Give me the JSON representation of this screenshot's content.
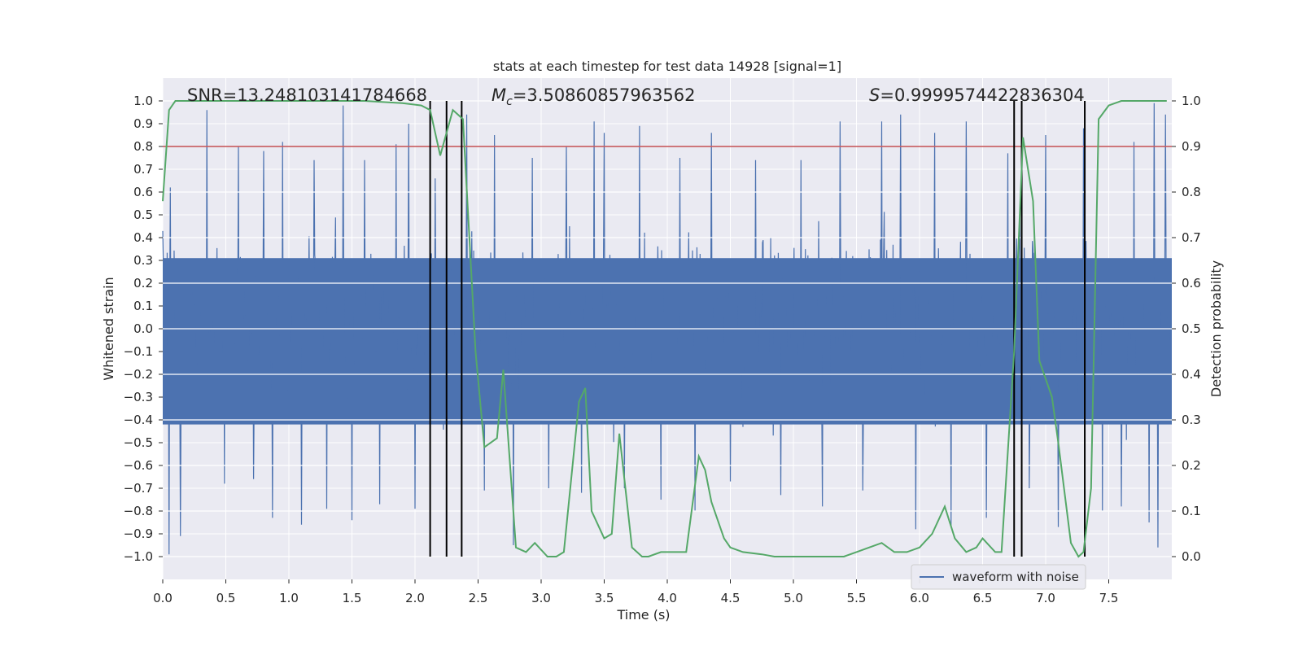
{
  "chart_data": {
    "type": "line",
    "title": "stats at each timestep for test data 14928 [signal=1]",
    "xlabel": "Time (s)",
    "ylabel": "Whitened strain",
    "y2label": "Detection probability",
    "xlim": [
      0.0,
      8.0
    ],
    "ylim": [
      -1.1,
      1.1
    ],
    "y2lim": [
      -0.05,
      1.05
    ],
    "xticks": [
      0.0,
      0.5,
      1.0,
      1.5,
      2.0,
      2.5,
      3.0,
      3.5,
      4.0,
      4.5,
      5.0,
      5.5,
      6.0,
      6.5,
      7.0,
      7.5
    ],
    "xtick_labels": [
      "0.0",
      "0.5",
      "1.0",
      "1.5",
      "2.0",
      "2.5",
      "3.0",
      "3.5",
      "4.0",
      "4.5",
      "5.0",
      "5.5",
      "6.0",
      "6.5",
      "7.0",
      "7.5"
    ],
    "yticks": [
      -1.0,
      -0.9,
      -0.8,
      -0.7,
      -0.6,
      -0.5,
      -0.4,
      -0.3,
      -0.2,
      -0.1,
      0.0,
      0.1,
      0.2,
      0.3,
      0.4,
      0.5,
      0.6,
      0.7,
      0.8,
      0.9,
      1.0
    ],
    "ytick_labels": [
      "−1.0",
      "−0.9",
      "−0.8",
      "−0.7",
      "−0.6",
      "−0.5",
      "−0.4",
      "−0.3",
      "−0.2",
      "−0.1",
      "0.0",
      "0.1",
      "0.2",
      "0.3",
      "0.4",
      "0.5",
      "0.6",
      "0.7",
      "0.8",
      "0.9",
      "1.0"
    ],
    "y2ticks": [
      0.0,
      0.1,
      0.2,
      0.3,
      0.4,
      0.5,
      0.6,
      0.7,
      0.8,
      0.9,
      1.0
    ],
    "y2tick_labels": [
      "0.0",
      "0.1",
      "0.2",
      "0.3",
      "0.4",
      "0.5",
      "0.6",
      "0.7",
      "0.8",
      "0.9",
      "1.0"
    ],
    "annotations": {
      "snr": "SNR=13.248103141784668",
      "mc_symbol": "M",
      "mc_sub": "c",
      "mc_value": "=3.50860857963562",
      "s_symbol": "S",
      "s_value": "=0.9999574422836304"
    },
    "legend": {
      "label": "waveform with noise",
      "position": "lower-right"
    },
    "threshold": {
      "value": 0.9,
      "axis": "y2",
      "color": "#c44e52"
    },
    "vlines": [
      2.12,
      2.25,
      2.37,
      6.75,
      6.81,
      7.31
    ],
    "colors": {
      "waveform": "#4c72b0",
      "probability": "#55a868",
      "vline": "#000000",
      "background": "#eaeaf2"
    },
    "waveform": {
      "name": "waveform with noise",
      "sample_rate_hz": 200,
      "duration_s": 8.0,
      "typical_amplitude": 0.4,
      "spikes": [
        [
          0.05,
          -0.99
        ],
        [
          0.06,
          0.62
        ],
        [
          0.14,
          -0.91
        ],
        [
          0.35,
          0.96
        ],
        [
          0.49,
          -0.68
        ],
        [
          0.6,
          0.8
        ],
        [
          0.72,
          -0.66
        ],
        [
          0.8,
          0.78
        ],
        [
          0.87,
          -0.83
        ],
        [
          0.95,
          0.82
        ],
        [
          1.1,
          -0.86
        ],
        [
          1.2,
          0.74
        ],
        [
          1.3,
          -0.79
        ],
        [
          1.43,
          0.98
        ],
        [
          1.5,
          -0.84
        ],
        [
          1.6,
          0.74
        ],
        [
          1.72,
          -0.77
        ],
        [
          1.85,
          0.81
        ],
        [
          1.95,
          0.9
        ],
        [
          2.0,
          -0.79
        ],
        [
          2.16,
          0.66
        ],
        [
          2.41,
          0.94
        ],
        [
          2.55,
          -0.71
        ],
        [
          2.63,
          0.85
        ],
        [
          2.78,
          -0.95
        ],
        [
          2.93,
          0.75
        ],
        [
          3.06,
          -0.7
        ],
        [
          3.2,
          0.8
        ],
        [
          3.32,
          -0.72
        ],
        [
          3.42,
          0.91
        ],
        [
          3.5,
          0.86
        ],
        [
          3.66,
          -0.7
        ],
        [
          3.78,
          0.89
        ],
        [
          3.95,
          -0.75
        ],
        [
          4.1,
          0.75
        ],
        [
          4.22,
          -0.8
        ],
        [
          4.35,
          0.86
        ],
        [
          4.5,
          -0.67
        ],
        [
          4.7,
          0.74
        ],
        [
          4.9,
          -0.73
        ],
        [
          5.06,
          0.74
        ],
        [
          5.23,
          -0.78
        ],
        [
          5.37,
          0.91
        ],
        [
          5.55,
          -0.71
        ],
        [
          5.7,
          0.91
        ],
        [
          5.85,
          0.94
        ],
        [
          5.97,
          -0.88
        ],
        [
          6.12,
          0.86
        ],
        [
          6.25,
          -0.87
        ],
        [
          6.37,
          0.91
        ],
        [
          6.53,
          -0.83
        ],
        [
          6.7,
          0.77
        ],
        [
          6.87,
          -0.7
        ],
        [
          7.0,
          0.85
        ],
        [
          7.1,
          -0.87
        ],
        [
          7.3,
          0.88
        ],
        [
          7.45,
          -0.8
        ],
        [
          7.6,
          -0.78
        ],
        [
          7.7,
          0.82
        ],
        [
          7.82,
          -0.85
        ],
        [
          7.86,
          0.99
        ],
        [
          7.89,
          -0.96
        ],
        [
          7.95,
          0.94
        ]
      ]
    },
    "probability": {
      "name": "detection probability",
      "axis": "y2",
      "x": [
        0.0,
        0.05,
        0.1,
        0.2,
        0.3,
        0.5,
        0.8,
        1.0,
        1.3,
        1.6,
        1.9,
        2.05,
        2.12,
        2.2,
        2.3,
        2.38,
        2.48,
        2.55,
        2.65,
        2.7,
        2.8,
        2.88,
        2.95,
        3.05,
        3.12,
        3.18,
        3.3,
        3.35,
        3.4,
        3.5,
        3.56,
        3.62,
        3.72,
        3.8,
        3.85,
        3.95,
        4.05,
        4.15,
        4.25,
        4.3,
        4.35,
        4.45,
        4.5,
        4.6,
        4.75,
        4.85,
        5.0,
        5.2,
        5.4,
        5.5,
        5.6,
        5.7,
        5.8,
        5.9,
        6.0,
        6.1,
        6.2,
        6.28,
        6.37,
        6.45,
        6.5,
        6.6,
        6.65,
        6.75,
        6.82,
        6.9,
        6.95,
        7.05,
        7.1,
        7.2,
        7.26,
        7.3,
        7.36,
        7.42,
        7.5,
        7.6,
        7.8,
        7.96
      ],
      "y": [
        0.78,
        0.98,
        1.0,
        1.0,
        1.0,
        1.0,
        1.0,
        1.0,
        1.0,
        1.0,
        0.995,
        0.99,
        0.98,
        0.88,
        0.98,
        0.96,
        0.45,
        0.24,
        0.26,
        0.41,
        0.02,
        0.01,
        0.03,
        0.0,
        0.0,
        0.01,
        0.34,
        0.37,
        0.1,
        0.04,
        0.05,
        0.27,
        0.02,
        0.0,
        0.0,
        0.01,
        0.01,
        0.01,
        0.22,
        0.19,
        0.12,
        0.04,
        0.02,
        0.01,
        0.005,
        0.0,
        0.0,
        0.0,
        0.0,
        0.01,
        0.02,
        0.03,
        0.01,
        0.01,
        0.02,
        0.05,
        0.11,
        0.04,
        0.01,
        0.02,
        0.04,
        0.01,
        0.01,
        0.45,
        0.92,
        0.78,
        0.43,
        0.35,
        0.25,
        0.03,
        0.0,
        0.01,
        0.15,
        0.96,
        0.99,
        1.0,
        1.0,
        1.0
      ]
    }
  }
}
